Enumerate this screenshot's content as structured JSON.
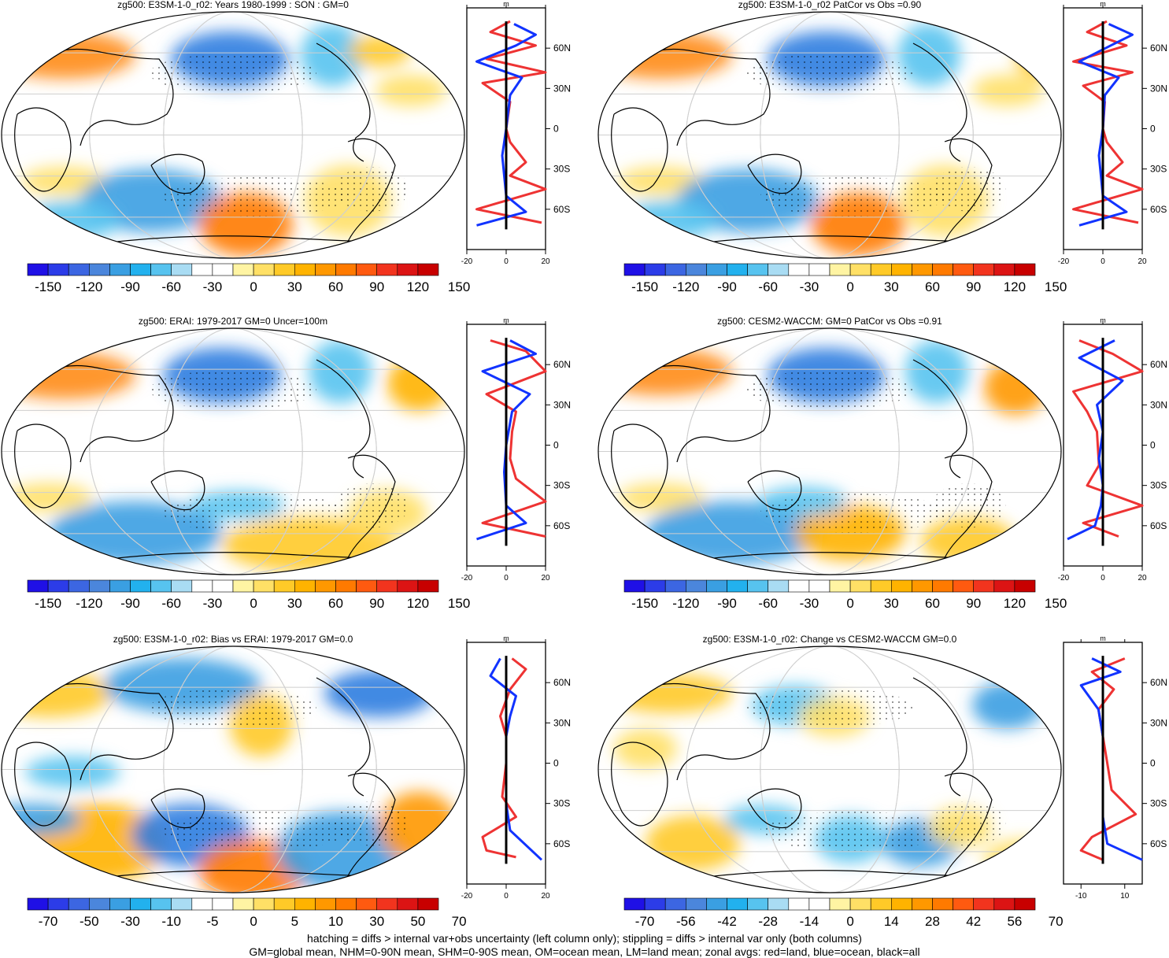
{
  "colors": {
    "cbar": [
      "#1f10e6",
      "#2c3ce8",
      "#3c66e2",
      "#4b86dc",
      "#3a9fe2",
      "#22b1ee",
      "#57c3ef",
      "#a9dcf3",
      "#ffffff",
      "#ffffff",
      "#fff4a3",
      "#ffe066",
      "#ffca28",
      "#ffb300",
      "#ff9800",
      "#ff7a00",
      "#ff5a10",
      "#f2341e",
      "#dc1414",
      "#c80000"
    ],
    "land": "#e33",
    "ocean": "#13f",
    "all": "#000"
  },
  "footer": {
    "line1": "hatching = diffs > internal var+obs uncertainty (left column only); stippling = diffs > internal var only (both columns)",
    "line2": "GM=global mean, NHM=0-90N mean, SHM=0-90S mean, OM=ocean mean, LM=land mean; zonal avgs: red=land, blue=ocean, black=all"
  },
  "chart_data": [
    {
      "type": "map",
      "title": "zg500: E3SM-1-0_r02: Years 1980-1999 : SON : GM=0",
      "cbar_labels": [
        "-150",
        "-120",
        "-90",
        "-60",
        "-30",
        "0",
        "30",
        "60",
        "90",
        "120",
        "150"
      ],
      "zonal": {
        "type": "line",
        "units": "m",
        "xticks": [
          "-20",
          "0",
          "20"
        ],
        "xlim": [
          -20,
          20
        ],
        "yticks": [
          "60N",
          "30N",
          "0",
          "30S",
          "60S"
        ],
        "series": [
          {
            "name": "land",
            "values": [
              [
                2,
                80
              ],
              [
                -8,
                72
              ],
              [
                15,
                62
              ],
              [
                -10,
                52
              ],
              [
                20,
                42
              ],
              [
                -12,
                34
              ],
              [
                2,
                20
              ],
              [
                0,
                0
              ],
              [
                2,
                -10
              ],
              [
                10,
                -25
              ],
              [
                2,
                -35
              ],
              [
                20,
                -45
              ],
              [
                -15,
                -60
              ],
              [
                18,
                -70
              ]
            ]
          },
          {
            "name": "ocean",
            "values": [
              [
                4,
                78
              ],
              [
                15,
                70
              ],
              [
                5,
                62
              ],
              [
                -15,
                50
              ],
              [
                8,
                38
              ],
              [
                2,
                25
              ],
              [
                0,
                0
              ],
              [
                -2,
                -20
              ],
              [
                -1,
                -35
              ],
              [
                0,
                -50
              ],
              [
                10,
                -62
              ],
              [
                -15,
                -72
              ]
            ]
          },
          {
            "name": "all",
            "values": [
              [
                0,
                80
              ],
              [
                0,
                -75
              ]
            ]
          }
        ]
      }
    },
    {
      "type": "map",
      "title": "zg500: E3SM-1-0_r02 PatCor vs Obs =0.90",
      "cbar_labels": [
        "-150",
        "-120",
        "-90",
        "-60",
        "-30",
        "0",
        "30",
        "60",
        "90",
        "120",
        "150"
      ],
      "zonal": {
        "type": "line",
        "units": "m",
        "xticks": [
          "-20",
          "0",
          "20"
        ],
        "xlim": [
          -20,
          20
        ],
        "yticks": [
          "60N",
          "30N",
          "0",
          "30S",
          "60S"
        ],
        "series": [
          {
            "name": "land",
            "values": [
              [
                2,
                80
              ],
              [
                -8,
                72
              ],
              [
                12,
                62
              ],
              [
                -15,
                50
              ],
              [
                15,
                42
              ],
              [
                -10,
                32
              ],
              [
                1,
                20
              ],
              [
                0,
                0
              ],
              [
                2,
                -10
              ],
              [
                10,
                -25
              ],
              [
                2,
                -35
              ],
              [
                20,
                -45
              ],
              [
                -15,
                -60
              ],
              [
                18,
                -70
              ]
            ]
          },
          {
            "name": "ocean",
            "values": [
              [
                3,
                78
              ],
              [
                15,
                70
              ],
              [
                4,
                62
              ],
              [
                -12,
                50
              ],
              [
                8,
                38
              ],
              [
                1,
                25
              ],
              [
                0,
                0
              ],
              [
                -2,
                -20
              ],
              [
                -1,
                -35
              ],
              [
                0,
                -50
              ],
              [
                12,
                -62
              ],
              [
                -12,
                -72
              ]
            ]
          },
          {
            "name": "all",
            "values": [
              [
                0,
                80
              ],
              [
                0,
                -75
              ]
            ]
          }
        ]
      }
    },
    {
      "type": "map",
      "title": "zg500: ERAI: 1979-2017 GM=0 Uncer=100m",
      "cbar_labels": [
        "-150",
        "-120",
        "-90",
        "-60",
        "-30",
        "0",
        "30",
        "60",
        "90",
        "120",
        "150"
      ],
      "zonal": {
        "type": "line",
        "units": "m",
        "xticks": [
          "-20",
          "0",
          "20"
        ],
        "xlim": [
          -20,
          20
        ],
        "yticks": [
          "60N",
          "30N",
          "0",
          "30S",
          "60S"
        ],
        "series": [
          {
            "name": "land",
            "values": [
              [
                -8,
                78
              ],
              [
                10,
                70
              ],
              [
                20,
                55
              ],
              [
                -10,
                38
              ],
              [
                5,
                25
              ],
              [
                3,
                10
              ],
              [
                2,
                -10
              ],
              [
                5,
                -25
              ],
              [
                20,
                -42
              ],
              [
                -12,
                -58
              ],
              [
                20,
                -68
              ]
            ]
          },
          {
            "name": "ocean",
            "values": [
              [
                2,
                78
              ],
              [
                15,
                68
              ],
              [
                -12,
                55
              ],
              [
                12,
                38
              ],
              [
                3,
                25
              ],
              [
                0,
                0
              ],
              [
                -1,
                -20
              ],
              [
                0,
                -45
              ],
              [
                10,
                -58
              ],
              [
                -15,
                -70
              ]
            ]
          },
          {
            "name": "all",
            "values": [
              [
                0,
                80
              ],
              [
                0,
                -75
              ]
            ]
          }
        ]
      }
    },
    {
      "type": "map",
      "title": "zg500: CESM2-WACCM: GM=0 PatCor vs Obs =0.91",
      "cbar_labels": [
        "-150",
        "-120",
        "-90",
        "-60",
        "-30",
        "0",
        "30",
        "60",
        "90",
        "120",
        "150"
      ],
      "zonal": {
        "type": "line",
        "units": "m",
        "xticks": [
          "-20",
          "0",
          "20"
        ],
        "xlim": [
          -20,
          20
        ],
        "yticks": [
          "60N",
          "30N",
          "0",
          "30S",
          "60S"
        ],
        "series": [
          {
            "name": "land",
            "values": [
              [
                -12,
                78
              ],
              [
                5,
                68
              ],
              [
                20,
                55
              ],
              [
                -15,
                40
              ],
              [
                -8,
                25
              ],
              [
                -3,
                10
              ],
              [
                -2,
                -15
              ],
              [
                -8,
                -30
              ],
              [
                20,
                -45
              ],
              [
                -10,
                -58
              ],
              [
                8,
                -68
              ]
            ]
          },
          {
            "name": "ocean",
            "values": [
              [
                6,
                78
              ],
              [
                -12,
                65
              ],
              [
                10,
                48
              ],
              [
                -3,
                30
              ],
              [
                0,
                10
              ],
              [
                -2,
                -10
              ],
              [
                0,
                -30
              ],
              [
                -1,
                -45
              ],
              [
                -4,
                -60
              ],
              [
                -18,
                -70
              ]
            ]
          },
          {
            "name": "all",
            "values": [
              [
                0,
                80
              ],
              [
                0,
                -75
              ]
            ]
          }
        ]
      }
    },
    {
      "type": "map",
      "title": "zg500: E3SM-1-0_r02: Bias vs ERAI: 1979-2017  GM=0.0",
      "cbar_labels": [
        "-70",
        "-50",
        "-30",
        "-10",
        "-5",
        "0",
        "5",
        "10",
        "30",
        "50",
        "70"
      ],
      "zonal": {
        "type": "line",
        "units": "m",
        "xticks": [
          "-20",
          "0",
          "20"
        ],
        "xlim": [
          -20,
          20
        ],
        "yticks": [
          "60N",
          "30N",
          "0",
          "30S",
          "60S"
        ],
        "series": [
          {
            "name": "land",
            "values": [
              [
                3,
                78
              ],
              [
                10,
                70
              ],
              [
                2,
                55
              ],
              [
                -3,
                35
              ],
              [
                0,
                20
              ],
              [
                0,
                0
              ],
              [
                -2,
                -25
              ],
              [
                5,
                -40
              ],
              [
                -12,
                -55
              ],
              [
                -10,
                -65
              ],
              [
                5,
                -70
              ]
            ]
          },
          {
            "name": "ocean",
            "values": [
              [
                -3,
                78
              ],
              [
                -8,
                65
              ],
              [
                5,
                50
              ],
              [
                2,
                35
              ],
              [
                0,
                20
              ],
              [
                0,
                0
              ],
              [
                0,
                -30
              ],
              [
                2,
                -50
              ],
              [
                18,
                -72
              ]
            ]
          },
          {
            "name": "all",
            "values": [
              [
                0,
                80
              ],
              [
                0,
                -75
              ]
            ]
          }
        ]
      }
    },
    {
      "type": "map",
      "title": "zg500: E3SM-1-0_r02: Change vs CESM2-WACCM GM=0.0",
      "cbar_labels": [
        "-70",
        "-56",
        "-42",
        "-28",
        "-14",
        "0",
        "14",
        "28",
        "42",
        "56",
        "70"
      ],
      "zonal": {
        "type": "line",
        "units": "m",
        "xticks": [
          "-10",
          "10"
        ],
        "xlim": [
          -18,
          18
        ],
        "yticks": [
          "60N",
          "30N",
          "0",
          "30S",
          "60S"
        ],
        "series": [
          {
            "name": "land",
            "values": [
              [
                10,
                78
              ],
              [
                -5,
                68
              ],
              [
                5,
                55
              ],
              [
                -2,
                40
              ],
              [
                0,
                20
              ],
              [
                2,
                0
              ],
              [
                4,
                -20
              ],
              [
                15,
                -38
              ],
              [
                -5,
                -55
              ],
              [
                -10,
                -65
              ],
              [
                0,
                -72
              ]
            ]
          },
          {
            "name": "ocean",
            "values": [
              [
                -5,
                78
              ],
              [
                8,
                68
              ],
              [
                -10,
                58
              ],
              [
                -2,
                40
              ],
              [
                0,
                20
              ],
              [
                0,
                0
              ],
              [
                0,
                -40
              ],
              [
                2,
                -60
              ],
              [
                18,
                -72
              ]
            ]
          },
          {
            "name": "all",
            "values": [
              [
                0,
                80
              ],
              [
                0,
                -75
              ]
            ]
          }
        ]
      }
    }
  ]
}
